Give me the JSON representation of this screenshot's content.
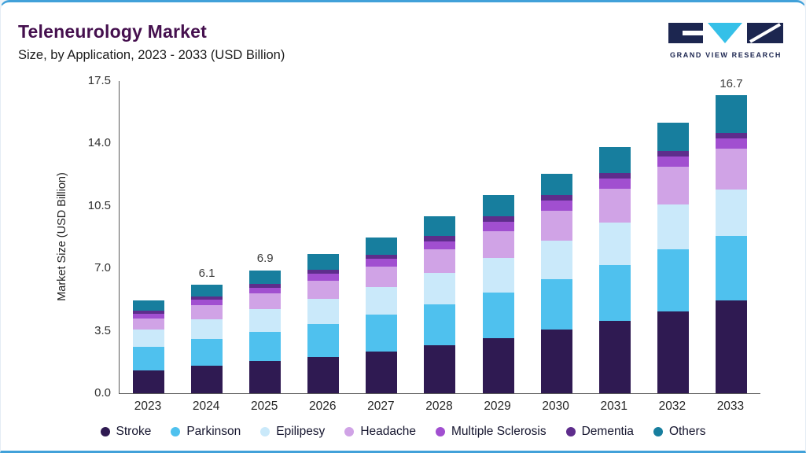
{
  "header": {
    "title": "Teleneurology Market",
    "subtitle": "Size, by Application, 2023 - 2033 (USD Billion)",
    "brand": "GRAND VIEW RESEARCH"
  },
  "colors": {
    "accent_border": "#41a1d9",
    "title": "#45104e",
    "brand_navy": "#1c2650",
    "brand_cyan": "#35c0e8"
  },
  "chart_data": {
    "type": "bar",
    "stacked": true,
    "title": "Teleneurology Market Size, by Application, 2023 - 2033 (USD Billion)",
    "xlabel": "",
    "ylabel": "Market Size (USD Billion)",
    "ylim": [
      0,
      17.5
    ],
    "yticks": [
      "0.0",
      "3.5",
      "7.0",
      "10.5",
      "14.0",
      "17.5"
    ],
    "grid": false,
    "legend_position": "bottom",
    "categories": [
      "2023",
      "2024",
      "2025",
      "2026",
      "2027",
      "2028",
      "2029",
      "2030",
      "2031",
      "2032",
      "2033"
    ],
    "series": [
      {
        "name": "Stroke",
        "color": "#2f1a52",
        "values": [
          1.3,
          1.55,
          1.8,
          2.05,
          2.35,
          2.7,
          3.1,
          3.55,
          4.05,
          4.6,
          5.2
        ]
      },
      {
        "name": "Parkinson",
        "color": "#4fc1ee",
        "values": [
          1.3,
          1.5,
          1.65,
          1.85,
          2.05,
          2.3,
          2.55,
          2.85,
          3.15,
          3.45,
          3.6
        ]
      },
      {
        "name": "Epilipesy",
        "color": "#cae9fa",
        "values": [
          0.95,
          1.1,
          1.25,
          1.4,
          1.55,
          1.75,
          1.95,
          2.15,
          2.35,
          2.55,
          2.6
        ]
      },
      {
        "name": "Headache",
        "color": "#d0a3e6",
        "values": [
          0.65,
          0.78,
          0.9,
          1.02,
          1.16,
          1.32,
          1.5,
          1.7,
          1.9,
          2.1,
          2.3
        ]
      },
      {
        "name": "Multiple Sclerosis",
        "color": "#a14fd0",
        "values": [
          0.26,
          0.3,
          0.33,
          0.37,
          0.41,
          0.46,
          0.5,
          0.54,
          0.57,
          0.58,
          0.6
        ]
      },
      {
        "name": "Dementia",
        "color": "#5e2d8c",
        "values": [
          0.18,
          0.2,
          0.22,
          0.24,
          0.26,
          0.28,
          0.3,
          0.31,
          0.32,
          0.32,
          0.3
        ]
      },
      {
        "name": "Others",
        "color": "#177e9e",
        "values": [
          0.55,
          0.67,
          0.75,
          0.87,
          0.97,
          1.09,
          1.2,
          1.2,
          1.45,
          1.55,
          2.1
        ]
      }
    ],
    "annotations": [
      {
        "category": "2024",
        "text": "6.1"
      },
      {
        "category": "2025",
        "text": "6.9"
      },
      {
        "category": "2033",
        "text": "16.7"
      }
    ]
  }
}
